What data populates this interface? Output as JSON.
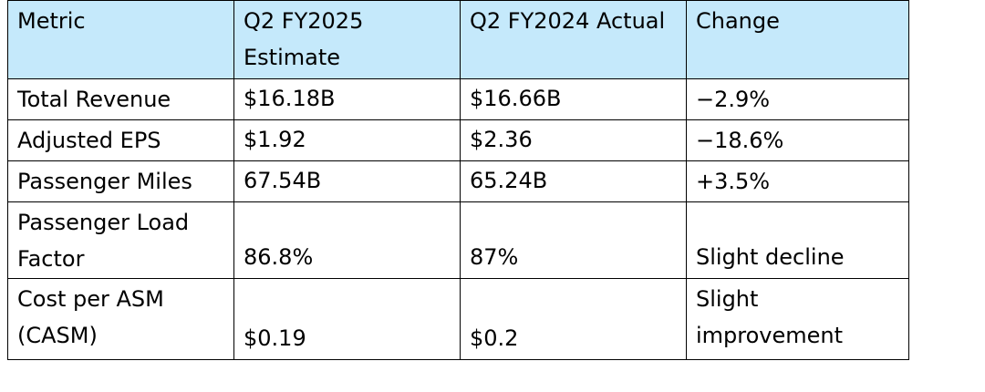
{
  "table": {
    "headers": [
      "Metric",
      "Q2  FY2025 Estimate",
      "Q2  FY2024 Actual",
      "Change"
    ],
    "rows": [
      {
        "metric": "Total  Revenue",
        "estimate": "$16.18B",
        "actual": "$16.66B",
        "change": "−2.9%"
      },
      {
        "metric": "Adjusted  EPS",
        "estimate": "$1.92",
        "actual": "$2.36",
        "change": "−18.6%"
      },
      {
        "metric": "Passenger  Miles",
        "estimate": "67.54B",
        "actual": "65.24B",
        "change": "+3.5%"
      },
      {
        "metric": "Passenger  Load Factor",
        "estimate": "86.8%",
        "actual": "87%",
        "change": "Slight decline"
      },
      {
        "metric": "Cost  per  ASM (CASM)",
        "estimate": "$0.19",
        "actual": "$0.2",
        "change": "Slight improvement"
      }
    ]
  }
}
